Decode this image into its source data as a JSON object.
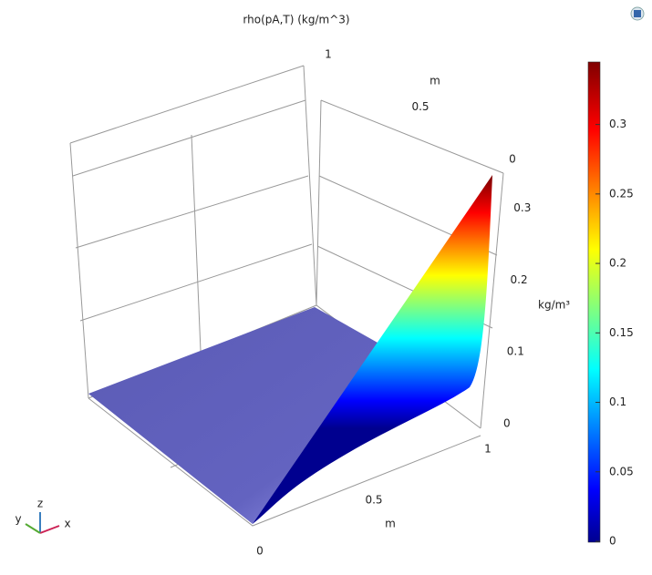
{
  "chart_data": {
    "type": "surface3d",
    "title": "rho(pA,T) (kg/m^3)",
    "xlabel": "m",
    "ylabel": "m",
    "zlabel": "kg/m³",
    "xlim": [
      0,
      1
    ],
    "xticks": [
      0,
      0.5,
      1
    ],
    "ylim": [
      0,
      1
    ],
    "yticks": [
      0,
      0.5,
      1
    ],
    "zlim": [
      0,
      0.345
    ],
    "zticks": [
      0,
      0.1,
      0.2,
      0.3
    ],
    "colorbar": {
      "clim": [
        0,
        0.345
      ],
      "ticks": [
        0,
        0.05,
        0.1,
        0.15,
        0.2,
        0.25,
        0.3
      ],
      "colormap": "jet"
    },
    "triad": [
      "x",
      "y",
      "z"
    ]
  }
}
